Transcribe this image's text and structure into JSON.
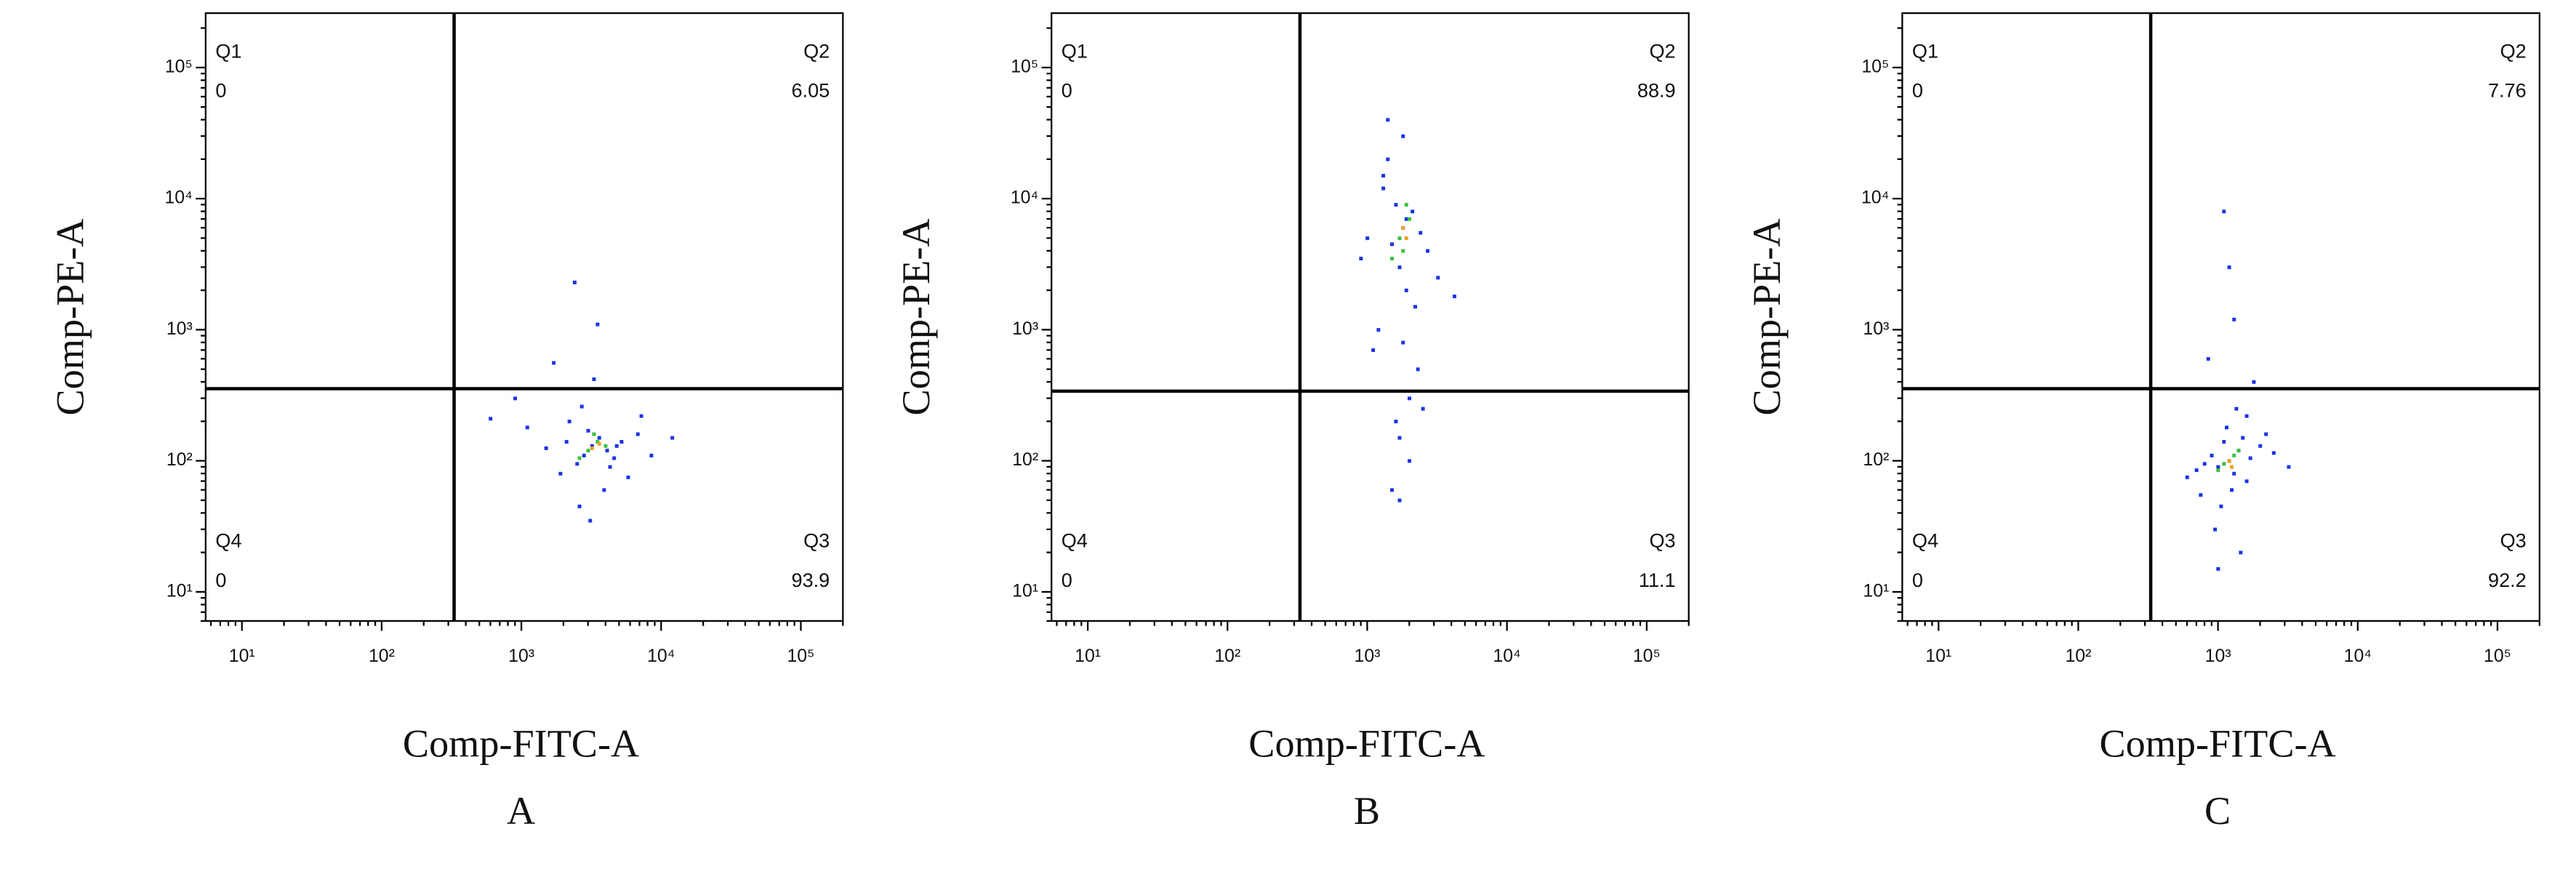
{
  "chart_data": [
    {
      "type": "scatter",
      "caption": "A",
      "x_label": "Comp-FITC-A",
      "y_label": "Comp-PE-A",
      "log_x": true,
      "log_y": true,
      "xlim": [
        5.5,
        200000
      ],
      "ylim": [
        6,
        260000
      ],
      "xticks": [
        {
          "value": 10,
          "label": "10¹"
        },
        {
          "value": 100,
          "label": "10²"
        },
        {
          "value": 1000,
          "label": "10³"
        },
        {
          "value": 10000,
          "label": "10⁴"
        },
        {
          "value": 100000,
          "label": "10⁵"
        }
      ],
      "yticks": [
        {
          "value": 10,
          "label": "10¹"
        },
        {
          "value": 100,
          "label": "10²"
        },
        {
          "value": 1000,
          "label": "10³"
        },
        {
          "value": 10000,
          "label": "10⁴"
        },
        {
          "value": 100000,
          "label": "10⁵"
        }
      ],
      "gate": {
        "x": 330,
        "y": 355
      },
      "quadrants": [
        {
          "name": "Q1",
          "value": 0
        },
        {
          "name": "Q2",
          "value": 6.05
        },
        {
          "name": "Q4",
          "value": 0
        },
        {
          "name": "Q3",
          "value": 93.9
        }
      ],
      "series": [
        {
          "color": "#1a33e6",
          "x": [
            3200,
            2800,
            3600,
            4100,
            2500,
            3000,
            5200,
            1900,
            2200,
            4600,
            6800,
            1500,
            3900,
            2700,
            8500,
            1100,
            3300,
            5800,
            2100,
            4300,
            900,
            12000,
            3500,
            2600,
            7200,
            1700,
            4800,
            3100,
            600,
            2400
          ],
          "y": [
            130,
            110,
            150,
            120,
            95,
            170,
            140,
            80,
            200,
            105,
            160,
            125,
            60,
            260,
            110,
            180,
            420,
            75,
            140,
            90,
            300,
            150,
            1100,
            45,
            220,
            560,
            130,
            35,
            210,
            2300
          ]
        },
        {
          "color": "#3fbf3f",
          "x": [
            3000,
            3500,
            2600,
            4000,
            3300
          ],
          "y": [
            120,
            140,
            105,
            130,
            160
          ]
        },
        {
          "color": "#f0a020",
          "x": [
            3200,
            3600
          ],
          "y": [
            125,
            135
          ]
        }
      ]
    },
    {
      "type": "scatter",
      "caption": "B",
      "x_label": "Comp-FITC-A",
      "y_label": "Comp-PE-A",
      "log_x": true,
      "log_y": true,
      "xlim": [
        5.5,
        200000
      ],
      "ylim": [
        6,
        260000
      ],
      "xticks": [
        {
          "value": 10,
          "label": "10¹"
        },
        {
          "value": 100,
          "label": "10²"
        },
        {
          "value": 1000,
          "label": "10³"
        },
        {
          "value": 10000,
          "label": "10⁴"
        },
        {
          "value": 100000,
          "label": "10⁵"
        }
      ],
      "yticks": [
        {
          "value": 10,
          "label": "10¹"
        },
        {
          "value": 100,
          "label": "10²"
        },
        {
          "value": 1000,
          "label": "10³"
        },
        {
          "value": 10000,
          "label": "10⁴"
        },
        {
          "value": 100000,
          "label": "10⁵"
        }
      ],
      "gate": {
        "x": 330,
        "y": 340
      },
      "quadrants": [
        {
          "name": "Q1",
          "value": 0
        },
        {
          "name": "Q2",
          "value": 88.9
        },
        {
          "name": "Q4",
          "value": 0
        },
        {
          "name": "Q3",
          "value": 11.1
        }
      ],
      "series": [
        {
          "color": "#1a33e6",
          "x": [
            1800,
            1500,
            2100,
            1700,
            1300,
            2400,
            1900,
            1600,
            2200,
            1400,
            1100,
            2700,
            1800,
            2000,
            1200,
            3200,
            1700,
            1500,
            2300,
            900,
            1900,
            1600,
            4200,
            1400,
            2000,
            1300,
            1800,
            2500,
            1000,
            1700
          ],
          "y": [
            6000,
            4500,
            8000,
            3000,
            12000,
            5500,
            2000,
            9000,
            1500,
            20000,
            700,
            4000,
            30000,
            300,
            1000,
            2500,
            150,
            60,
            500,
            3500,
            7000,
            200,
            1800,
            40000,
            100,
            15000,
            800,
            250,
            5000,
            50
          ]
        },
        {
          "color": "#3fbf3f",
          "x": [
            1700,
            2000,
            1500,
            1900,
            1800
          ],
          "y": [
            5000,
            7000,
            3500,
            9000,
            4000
          ]
        },
        {
          "color": "#f0a020",
          "x": [
            1800,
            1900
          ],
          "y": [
            6000,
            5000
          ]
        }
      ]
    },
    {
      "type": "scatter",
      "caption": "C",
      "x_label": "Comp-FITC-A",
      "y_label": "Comp-PE-A",
      "log_x": true,
      "log_y": true,
      "xlim": [
        5.5,
        200000
      ],
      "ylim": [
        6,
        260000
      ],
      "xticks": [
        {
          "value": 10,
          "label": "10¹"
        },
        {
          "value": 100,
          "label": "10²"
        },
        {
          "value": 1000,
          "label": "10³"
        },
        {
          "value": 10000,
          "label": "10⁴"
        },
        {
          "value": 100000,
          "label": "10⁵"
        }
      ],
      "yticks": [
        {
          "value": 10,
          "label": "10¹"
        },
        {
          "value": 100,
          "label": "10²"
        },
        {
          "value": 1000,
          "label": "10³"
        },
        {
          "value": 10000,
          "label": "10⁴"
        },
        {
          "value": 100000,
          "label": "10⁵"
        }
      ],
      "gate": {
        "x": 330,
        "y": 355
      },
      "quadrants": [
        {
          "name": "Q1",
          "value": 0
        },
        {
          "name": "Q2",
          "value": 7.76
        },
        {
          "name": "Q4",
          "value": 0
        },
        {
          "name": "Q3",
          "value": 92.2
        }
      ],
      "series": [
        {
          "color": "#1a33e6",
          "x": [
            1200,
            1000,
            1400,
            1300,
            900,
            1600,
            1100,
            800,
            1700,
            1250,
            1500,
            700,
            2000,
            1050,
            1350,
            2500,
            950,
            1150,
            600,
            1800,
            1450,
            3200,
            850,
            1300,
            1000,
            1600,
            1200,
            750,
            2200,
            1100
          ],
          "y": [
            100,
            90,
            120,
            80,
            110,
            70,
            140,
            95,
            105,
            60,
            150,
            85,
            130,
            45,
            250,
            115,
            30,
            180,
            75,
            400,
            20,
            90,
            600,
            1200,
            15,
            220,
            3000,
            55,
            160,
            8000
          ]
        },
        {
          "color": "#3fbf3f",
          "x": [
            1100,
            1300,
            1000,
            1400,
            1200
          ],
          "y": [
            95,
            110,
            85,
            120,
            100
          ]
        },
        {
          "color": "#f0a020",
          "x": [
            1200,
            1250
          ],
          "y": [
            100,
            90
          ]
        }
      ]
    }
  ]
}
